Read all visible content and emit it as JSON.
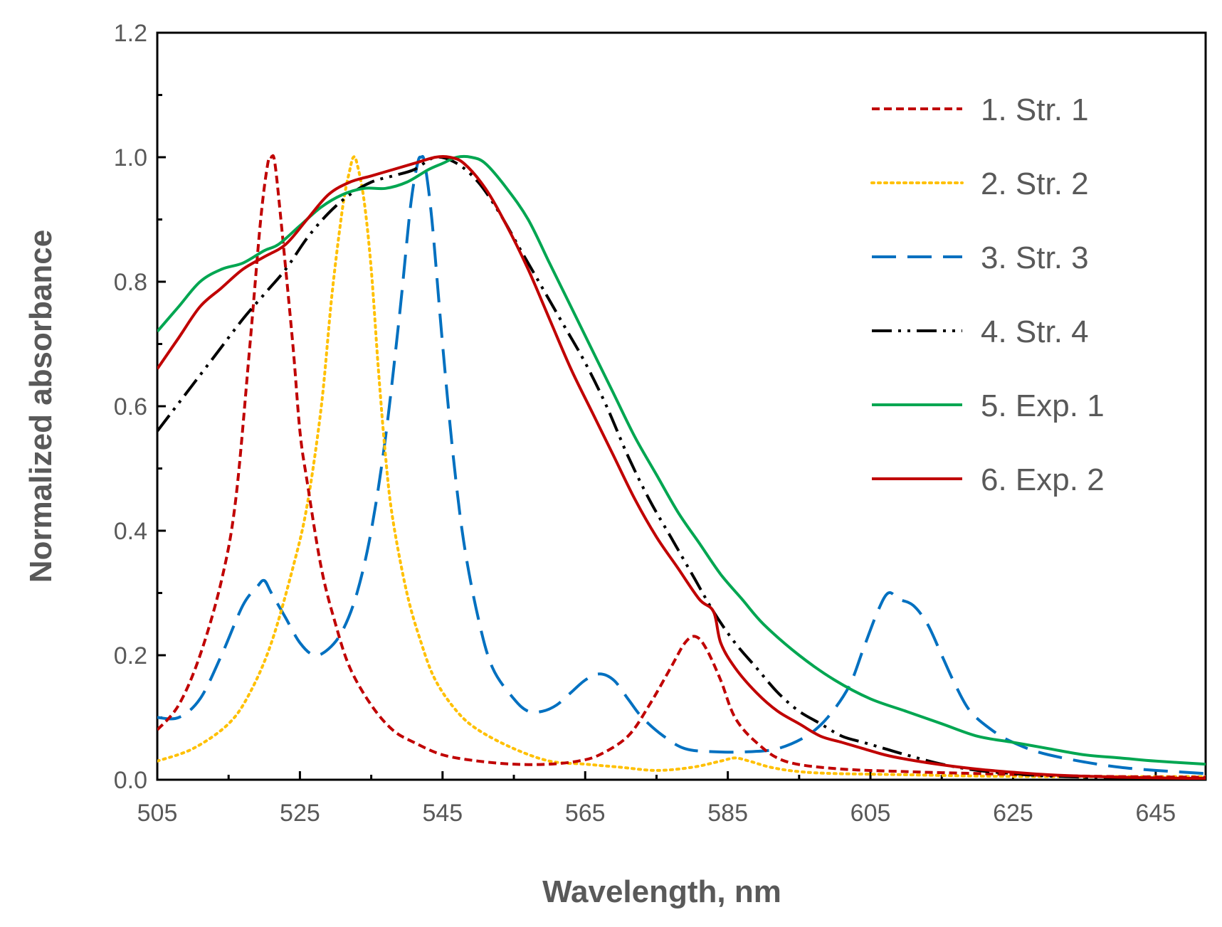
{
  "chart_data": {
    "type": "line",
    "title": "",
    "xlabel": "Wavelength, nm",
    "ylabel": "Normalized absorbance",
    "xlim": [
      505,
      652
    ],
    "ylim": [
      0,
      1.2
    ],
    "xticks": [
      505,
      525,
      545,
      565,
      585,
      605,
      625,
      645
    ],
    "yticks": [
      0.0,
      0.2,
      0.4,
      0.6,
      0.8,
      1.0,
      1.2
    ],
    "ytick_labels": [
      "0.0",
      "0.2",
      "0.4",
      "0.6",
      "0.8",
      "1.0",
      "1.2"
    ],
    "grid": false,
    "legend_position": "top-right",
    "series": [
      {
        "name": "1. Str. 1",
        "color": "#c00000",
        "dash": "short-dash",
        "points": [
          [
            505,
            0.08
          ],
          [
            508,
            0.12
          ],
          [
            511,
            0.2
          ],
          [
            514,
            0.32
          ],
          [
            516,
            0.45
          ],
          [
            518,
            0.7
          ],
          [
            519.5,
            0.9
          ],
          [
            520.5,
            0.99
          ],
          [
            521,
            1.0
          ],
          [
            521.5,
            0.99
          ],
          [
            522.5,
            0.88
          ],
          [
            524,
            0.7
          ],
          [
            525,
            0.56
          ],
          [
            526,
            0.48
          ],
          [
            528,
            0.34
          ],
          [
            530,
            0.25
          ],
          [
            532,
            0.18
          ],
          [
            535,
            0.12
          ],
          [
            538,
            0.08
          ],
          [
            541,
            0.06
          ],
          [
            545,
            0.04
          ],
          [
            550,
            0.03
          ],
          [
            555,
            0.025
          ],
          [
            560,
            0.025
          ],
          [
            564,
            0.03
          ],
          [
            567,
            0.04
          ],
          [
            571,
            0.07
          ],
          [
            574,
            0.12
          ],
          [
            577,
            0.18
          ],
          [
            579,
            0.22
          ],
          [
            580.5,
            0.23
          ],
          [
            582,
            0.21
          ],
          [
            584,
            0.16
          ],
          [
            586,
            0.1
          ],
          [
            589,
            0.06
          ],
          [
            593,
            0.03
          ],
          [
            600,
            0.018
          ],
          [
            610,
            0.013
          ],
          [
            620,
            0.01
          ],
          [
            630,
            0.007
          ],
          [
            640,
            0.005
          ],
          [
            652,
            0.004
          ]
        ]
      },
      {
        "name": "2. Str. 2",
        "color": "#ffc000",
        "dash": "dot",
        "points": [
          [
            505,
            0.03
          ],
          [
            510,
            0.05
          ],
          [
            515,
            0.09
          ],
          [
            518,
            0.14
          ],
          [
            521,
            0.22
          ],
          [
            524,
            0.34
          ],
          [
            526,
            0.44
          ],
          [
            528,
            0.6
          ],
          [
            529.5,
            0.78
          ],
          [
            531,
            0.92
          ],
          [
            532,
            0.98
          ],
          [
            532.5,
            1.0
          ],
          [
            533,
            0.99
          ],
          [
            534,
            0.93
          ],
          [
            535,
            0.82
          ],
          [
            536,
            0.66
          ],
          [
            537,
            0.52
          ],
          [
            538,
            0.42
          ],
          [
            540,
            0.3
          ],
          [
            542,
            0.22
          ],
          [
            544,
            0.16
          ],
          [
            547,
            0.11
          ],
          [
            550,
            0.08
          ],
          [
            555,
            0.05
          ],
          [
            560,
            0.03
          ],
          [
            565,
            0.025
          ],
          [
            570,
            0.02
          ],
          [
            575,
            0.015
          ],
          [
            580,
            0.02
          ],
          [
            584,
            0.03
          ],
          [
            586,
            0.035
          ],
          [
            588,
            0.03
          ],
          [
            591,
            0.02
          ],
          [
            595,
            0.013
          ],
          [
            600,
            0.01
          ],
          [
            610,
            0.008
          ],
          [
            620,
            0.006
          ],
          [
            630,
            0.005
          ],
          [
            640,
            0.005
          ],
          [
            652,
            0.005
          ]
        ]
      },
      {
        "name": "3. Str. 3",
        "color": "#0070c0",
        "dash": "long-dash",
        "points": [
          [
            505,
            0.1
          ],
          [
            508,
            0.1
          ],
          [
            511,
            0.13
          ],
          [
            514,
            0.2
          ],
          [
            517,
            0.28
          ],
          [
            519,
            0.31
          ],
          [
            520,
            0.32
          ],
          [
            521,
            0.3
          ],
          [
            523,
            0.26
          ],
          [
            525,
            0.22
          ],
          [
            527,
            0.2
          ],
          [
            529,
            0.21
          ],
          [
            531,
            0.24
          ],
          [
            533,
            0.3
          ],
          [
            535,
            0.4
          ],
          [
            537,
            0.55
          ],
          [
            539,
            0.75
          ],
          [
            540.5,
            0.92
          ],
          [
            541.5,
            0.99
          ],
          [
            542,
            1.0
          ],
          [
            542.5,
            0.99
          ],
          [
            543.5,
            0.9
          ],
          [
            545,
            0.7
          ],
          [
            546.5,
            0.52
          ],
          [
            548,
            0.38
          ],
          [
            550,
            0.26
          ],
          [
            552,
            0.18
          ],
          [
            555,
            0.13
          ],
          [
            557,
            0.11
          ],
          [
            559,
            0.11
          ],
          [
            561,
            0.12
          ],
          [
            563,
            0.14
          ],
          [
            565,
            0.16
          ],
          [
            567,
            0.17
          ],
          [
            569,
            0.16
          ],
          [
            571,
            0.13
          ],
          [
            573,
            0.1
          ],
          [
            576,
            0.07
          ],
          [
            579,
            0.05
          ],
          [
            583,
            0.045
          ],
          [
            588,
            0.045
          ],
          [
            592,
            0.05
          ],
          [
            596,
            0.07
          ],
          [
            599,
            0.1
          ],
          [
            602,
            0.15
          ],
          [
            604,
            0.21
          ],
          [
            606,
            0.27
          ],
          [
            607.5,
            0.3
          ],
          [
            609,
            0.29
          ],
          [
            611,
            0.28
          ],
          [
            613,
            0.25
          ],
          [
            615,
            0.2
          ],
          [
            617,
            0.15
          ],
          [
            619,
            0.11
          ],
          [
            622,
            0.08
          ],
          [
            625,
            0.06
          ],
          [
            630,
            0.04
          ],
          [
            640,
            0.02
          ],
          [
            652,
            0.01
          ]
        ]
      },
      {
        "name": "4. Str. 4",
        "color": "#000000",
        "dash": "dash-dot-dot",
        "points": [
          [
            505,
            0.56
          ],
          [
            509,
            0.62
          ],
          [
            513,
            0.68
          ],
          [
            517,
            0.74
          ],
          [
            520,
            0.78
          ],
          [
            523,
            0.82
          ],
          [
            526,
            0.87
          ],
          [
            529,
            0.91
          ],
          [
            532,
            0.94
          ],
          [
            535,
            0.96
          ],
          [
            538,
            0.97
          ],
          [
            541,
            0.98
          ],
          [
            544,
            1.0
          ],
          [
            547,
            0.99
          ],
          [
            550,
            0.96
          ],
          [
            553,
            0.91
          ],
          [
            556,
            0.85
          ],
          [
            559,
            0.79
          ],
          [
            562,
            0.73
          ],
          [
            565,
            0.67
          ],
          [
            568,
            0.6
          ],
          [
            571,
            0.52
          ],
          [
            574,
            0.45
          ],
          [
            577,
            0.39
          ],
          [
            580,
            0.33
          ],
          [
            583,
            0.27
          ],
          [
            586,
            0.22
          ],
          [
            589,
            0.18
          ],
          [
            592,
            0.14
          ],
          [
            595,
            0.11
          ],
          [
            598,
            0.09
          ],
          [
            601,
            0.07
          ],
          [
            604,
            0.06
          ],
          [
            607,
            0.05
          ],
          [
            610,
            0.04
          ],
          [
            615,
            0.025
          ],
          [
            620,
            0.015
          ],
          [
            625,
            0.01
          ],
          [
            630,
            0.006
          ],
          [
            640,
            0.003
          ],
          [
            652,
            0.002
          ]
        ]
      },
      {
        "name": "5. Exp. 1",
        "color": "#00a651",
        "dash": "solid",
        "points": [
          [
            505,
            0.72
          ],
          [
            508,
            0.76
          ],
          [
            511,
            0.8
          ],
          [
            514,
            0.82
          ],
          [
            517,
            0.83
          ],
          [
            520,
            0.85
          ],
          [
            522,
            0.86
          ],
          [
            525,
            0.89
          ],
          [
            528,
            0.92
          ],
          [
            531,
            0.94
          ],
          [
            534,
            0.95
          ],
          [
            537,
            0.95
          ],
          [
            540,
            0.96
          ],
          [
            543,
            0.98
          ],
          [
            545,
            0.99
          ],
          [
            547,
            1.0
          ],
          [
            549,
            1.0
          ],
          [
            551,
            0.99
          ],
          [
            554,
            0.95
          ],
          [
            557,
            0.9
          ],
          [
            560,
            0.83
          ],
          [
            563,
            0.76
          ],
          [
            566,
            0.69
          ],
          [
            569,
            0.62
          ],
          [
            572,
            0.55
          ],
          [
            575,
            0.49
          ],
          [
            578,
            0.43
          ],
          [
            581,
            0.38
          ],
          [
            584,
            0.33
          ],
          [
            587,
            0.29
          ],
          [
            590,
            0.25
          ],
          [
            595,
            0.2
          ],
          [
            600,
            0.16
          ],
          [
            605,
            0.13
          ],
          [
            610,
            0.11
          ],
          [
            615,
            0.09
          ],
          [
            620,
            0.07
          ],
          [
            625,
            0.06
          ],
          [
            630,
            0.05
          ],
          [
            635,
            0.04
          ],
          [
            640,
            0.035
          ],
          [
            645,
            0.03
          ],
          [
            652,
            0.025
          ]
        ]
      },
      {
        "name": "6. Exp. 2",
        "color": "#c00000",
        "dash": "solid",
        "points": [
          [
            505,
            0.66
          ],
          [
            508,
            0.71
          ],
          [
            511,
            0.76
          ],
          [
            514,
            0.79
          ],
          [
            517,
            0.82
          ],
          [
            520,
            0.84
          ],
          [
            523,
            0.86
          ],
          [
            526,
            0.9
          ],
          [
            529,
            0.94
          ],
          [
            532,
            0.96
          ],
          [
            535,
            0.97
          ],
          [
            538,
            0.98
          ],
          [
            541,
            0.99
          ],
          [
            544,
            1.0
          ],
          [
            546,
            1.0
          ],
          [
            548,
            0.99
          ],
          [
            551,
            0.95
          ],
          [
            554,
            0.89
          ],
          [
            557,
            0.82
          ],
          [
            560,
            0.74
          ],
          [
            563,
            0.66
          ],
          [
            566,
            0.59
          ],
          [
            569,
            0.52
          ],
          [
            572,
            0.45
          ],
          [
            575,
            0.39
          ],
          [
            578,
            0.34
          ],
          [
            581,
            0.29
          ],
          [
            583,
            0.27
          ],
          [
            584,
            0.22
          ],
          [
            586,
            0.18
          ],
          [
            589,
            0.14
          ],
          [
            592,
            0.11
          ],
          [
            595,
            0.09
          ],
          [
            598,
            0.07
          ],
          [
            601,
            0.06
          ],
          [
            604,
            0.05
          ],
          [
            607,
            0.04
          ],
          [
            610,
            0.033
          ],
          [
            615,
            0.024
          ],
          [
            620,
            0.017
          ],
          [
            625,
            0.012
          ],
          [
            630,
            0.008
          ],
          [
            640,
            0.004
          ],
          [
            652,
            0.002
          ]
        ]
      }
    ]
  }
}
